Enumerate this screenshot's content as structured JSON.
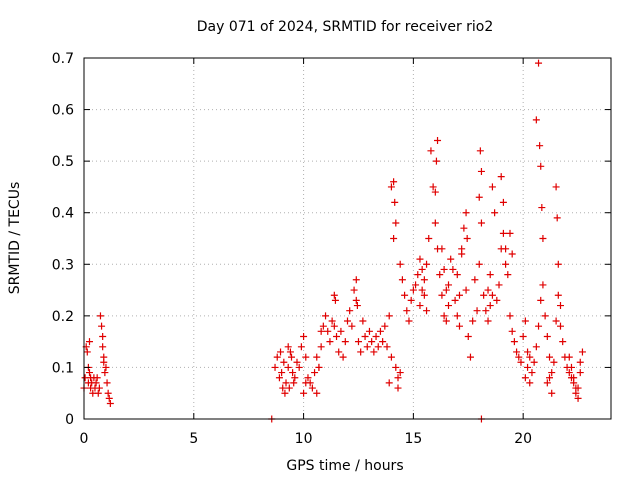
{
  "chart_data": {
    "type": "scatter",
    "title": "Day 071 of 2024, SRMTID for receiver rio2",
    "xlabel": "GPS time / hours",
    "ylabel": "SRMTID / TECUs",
    "xlim": [
      0,
      24
    ],
    "ylim": [
      0,
      0.7
    ],
    "xticks": [
      0,
      5,
      10,
      15,
      20
    ],
    "yticks": [
      0,
      0.1,
      0.2,
      0.3,
      0.4,
      0.5,
      0.6,
      0.7
    ],
    "xtick_labels": [
      "0",
      "5",
      "10",
      "15",
      "20"
    ],
    "ytick_labels": [
      "0",
      "0.1",
      "0.2",
      "0.3",
      "0.4",
      "0.5",
      "0.6",
      "0.7"
    ],
    "grid": true,
    "marker": "+",
    "color": "#e00000",
    "series": [
      {
        "name": "rio2",
        "x": [
          0.0,
          0.05,
          0.1,
          0.15,
          0.2,
          0.25,
          0.3,
          0.35,
          0.4,
          0.45,
          0.5,
          0.55,
          0.6,
          0.65,
          0.7,
          0.75,
          0.8,
          0.85,
          0.9,
          0.95,
          1.0,
          1.05,
          1.1,
          1.15,
          1.2,
          0.2,
          0.25,
          0.3,
          0.85,
          0.9,
          8.55,
          18.1,
          8.7,
          8.8,
          8.9,
          9.0,
          9.1,
          9.2,
          9.3,
          9.4,
          9.5,
          9.6,
          9.7,
          9.8,
          9.9,
          10.0,
          10.1,
          10.2,
          10.3,
          10.4,
          10.5,
          10.6,
          10.7,
          10.8,
          10.9,
          11.0,
          11.1,
          11.2,
          11.3,
          11.4,
          11.5,
          11.6,
          11.7,
          11.8,
          11.9,
          12.0,
          12.1,
          12.2,
          12.3,
          12.4,
          12.5,
          12.6,
          12.7,
          12.8,
          12.9,
          13.0,
          13.1,
          13.2,
          13.3,
          13.4,
          13.5,
          13.6,
          13.7,
          13.8,
          13.9,
          14.0,
          14.1,
          14.2,
          14.3,
          14.4,
          14.5,
          14.6,
          14.7,
          14.8,
          14.9,
          15.0,
          15.1,
          15.2,
          15.3,
          15.4,
          15.5,
          15.6,
          15.7,
          15.8,
          15.9,
          16.0,
          16.1,
          16.2,
          16.3,
          16.4,
          16.5,
          16.6,
          16.7,
          16.8,
          16.9,
          17.0,
          17.1,
          17.2,
          17.3,
          17.4,
          17.5,
          17.6,
          17.7,
          17.8,
          17.9,
          18.0,
          18.1,
          18.2,
          18.3,
          18.4,
          18.5,
          18.6,
          18.7,
          18.8,
          18.9,
          19.0,
          19.1,
          19.2,
          19.3,
          19.4,
          19.5,
          19.6,
          19.7,
          19.8,
          19.9,
          20.0,
          20.1,
          20.2,
          20.3,
          20.4,
          20.5,
          20.6,
          20.7,
          20.8,
          20.9,
          21.0,
          21.1,
          21.2,
          21.3,
          21.4,
          21.5,
          21.6,
          21.7,
          21.8,
          21.9,
          22.0,
          22.1,
          22.2,
          22.3,
          22.4,
          22.5,
          22.6,
          22.7,
          14.1,
          14.15,
          14.2,
          16.0,
          16.05,
          16.1,
          17.4,
          17.45,
          18.0,
          18.05,
          18.1,
          19.0,
          19.1,
          19.2,
          20.6,
          20.7,
          20.75,
          20.8,
          20.85,
          20.9,
          21.5,
          21.55,
          21.6,
          21.7,
          12.4,
          12.45,
          11.4,
          11.45,
          10.0,
          10.1,
          9.3,
          9.35,
          15.3,
          15.4,
          15.5,
          15.6,
          16.3,
          16.4,
          16.5,
          16.6,
          17.0,
          17.1,
          17.2,
          18.4,
          18.5,
          18.6,
          19.4,
          19.5,
          22.1,
          22.2,
          22.3,
          22.4,
          22.5,
          22.6,
          10.6,
          10.7,
          10.8,
          13.9,
          14.0,
          14.3,
          14.4,
          20.1,
          20.2,
          20.3,
          21.1,
          21.2,
          21.3,
          8.95,
          9.05,
          9.15,
          9.45,
          9.55
        ],
        "y": [
          0.06,
          0.08,
          0.14,
          0.13,
          0.07,
          0.09,
          0.06,
          0.07,
          0.05,
          0.08,
          0.06,
          0.07,
          0.08,
          0.05,
          0.06,
          0.2,
          0.18,
          0.14,
          0.11,
          0.09,
          0.1,
          0.07,
          0.05,
          0.04,
          0.03,
          0.1,
          0.15,
          0.08,
          0.16,
          0.12,
          0.0,
          0.0,
          0.1,
          0.12,
          0.08,
          0.09,
          0.11,
          0.07,
          0.1,
          0.13,
          0.09,
          0.08,
          0.11,
          0.1,
          0.14,
          0.16,
          0.12,
          0.08,
          0.07,
          0.06,
          0.09,
          0.05,
          0.1,
          0.14,
          0.18,
          0.2,
          0.17,
          0.15,
          0.19,
          0.24,
          0.16,
          0.13,
          0.17,
          0.12,
          0.15,
          0.19,
          0.21,
          0.18,
          0.25,
          0.23,
          0.15,
          0.13,
          0.19,
          0.16,
          0.14,
          0.17,
          0.15,
          0.13,
          0.16,
          0.14,
          0.17,
          0.15,
          0.18,
          0.14,
          0.2,
          0.45,
          0.35,
          0.1,
          0.08,
          0.3,
          0.27,
          0.24,
          0.21,
          0.19,
          0.23,
          0.25,
          0.26,
          0.28,
          0.22,
          0.25,
          0.27,
          0.3,
          0.35,
          0.52,
          0.45,
          0.38,
          0.33,
          0.28,
          0.24,
          0.2,
          0.19,
          0.26,
          0.31,
          0.29,
          0.23,
          0.2,
          0.18,
          0.33,
          0.37,
          0.25,
          0.16,
          0.12,
          0.19,
          0.27,
          0.21,
          0.3,
          0.38,
          0.24,
          0.21,
          0.19,
          0.22,
          0.45,
          0.4,
          0.23,
          0.26,
          0.47,
          0.42,
          0.33,
          0.28,
          0.2,
          0.17,
          0.15,
          0.13,
          0.12,
          0.11,
          0.16,
          0.19,
          0.1,
          0.12,
          0.09,
          0.11,
          0.14,
          0.18,
          0.23,
          0.26,
          0.2,
          0.16,
          0.12,
          0.09,
          0.11,
          0.19,
          0.24,
          0.18,
          0.15,
          0.12,
          0.1,
          0.09,
          0.08,
          0.07,
          0.05,
          0.06,
          0.09,
          0.13,
          0.46,
          0.42,
          0.38,
          0.44,
          0.5,
          0.54,
          0.4,
          0.35,
          0.43,
          0.52,
          0.48,
          0.33,
          0.36,
          0.3,
          0.58,
          0.69,
          0.53,
          0.49,
          0.41,
          0.35,
          0.45,
          0.39,
          0.3,
          0.22,
          0.27,
          0.22,
          0.18,
          0.23,
          0.05,
          0.07,
          0.14,
          0.06,
          0.31,
          0.29,
          0.24,
          0.21,
          0.33,
          0.29,
          0.25,
          0.22,
          0.28,
          0.24,
          0.32,
          0.25,
          0.28,
          0.24,
          0.36,
          0.32,
          0.12,
          0.1,
          0.08,
          0.06,
          0.04,
          0.11,
          0.12,
          0.1,
          0.17,
          0.07,
          0.12,
          0.06,
          0.09,
          0.08,
          0.13,
          0.07,
          0.07,
          0.08,
          0.05,
          0.13,
          0.06,
          0.05,
          0.12,
          0.07
        ]
      }
    ]
  }
}
